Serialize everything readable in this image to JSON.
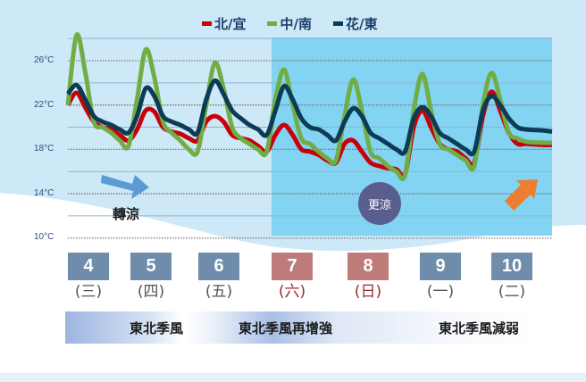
{
  "chart_data": {
    "type": "line",
    "title": "",
    "xlabel": "",
    "ylabel": "",
    "ylim": [
      10,
      28.5
    ],
    "yticks": [
      "26°C",
      "22°C",
      "18°C",
      "14°C",
      "10°C"
    ],
    "ytick_values": [
      26,
      22,
      18,
      14,
      10
    ],
    "grid": true,
    "legend_position": "top",
    "categories": [
      "4",
      "5",
      "6",
      "7",
      "8",
      "9",
      "10"
    ],
    "weekdays": [
      "(三)",
      "(四)",
      "(五)",
      "(六)",
      "(日)",
      "(一)",
      "(二)"
    ],
    "x_hours": [
      0,
      3,
      6,
      9,
      12,
      15,
      18,
      21,
      24,
      27,
      30,
      33,
      36,
      39,
      42,
      45,
      48,
      51,
      54,
      57,
      60,
      63,
      66,
      69,
      72,
      75,
      78,
      81,
      84,
      87,
      90,
      93,
      96,
      99,
      102,
      105,
      108,
      111,
      114,
      117,
      120,
      123,
      126,
      129,
      132,
      135,
      138,
      141,
      144,
      147,
      150,
      153,
      156,
      159,
      165,
      168
    ],
    "series": [
      {
        "name": "北/宜",
        "color": "#c8000a",
        "values": [
          22.0,
          23.1,
          21.8,
          20.5,
          20.0,
          19.8,
          19.3,
          18.8,
          19.8,
          21.5,
          21.4,
          20.0,
          19.6,
          19.4,
          19.0,
          18.8,
          20.5,
          21.0,
          20.5,
          19.3,
          19.0,
          18.8,
          18.3,
          17.8,
          19.3,
          20.2,
          19.3,
          18.0,
          17.8,
          17.5,
          17.0,
          16.8,
          18.5,
          18.8,
          17.8,
          16.8,
          16.5,
          16.3,
          16.2,
          15.8,
          20.0,
          21.5,
          20.0,
          18.5,
          18.0,
          17.8,
          17.2,
          16.8,
          21.0,
          23.2,
          21.5,
          19.5,
          18.5,
          18.5,
          18.4,
          18.4
        ]
      },
      {
        "name": "中/南",
        "color": "#71ad45",
        "values": [
          22.0,
          28.3,
          25.0,
          20.5,
          20.0,
          19.5,
          18.8,
          18.3,
          22.5,
          27.0,
          24.5,
          20.5,
          19.5,
          18.8,
          18.0,
          17.8,
          22.0,
          25.8,
          23.5,
          20.0,
          19.0,
          18.5,
          18.0,
          17.8,
          22.5,
          25.2,
          22.0,
          19.0,
          18.5,
          17.8,
          17.2,
          17.0,
          21.0,
          24.3,
          21.5,
          17.8,
          17.2,
          16.5,
          16.0,
          15.7,
          21.5,
          24.8,
          21.5,
          18.5,
          18.0,
          17.5,
          17.0,
          16.5,
          22.0,
          24.9,
          22.5,
          19.5,
          19.0,
          18.7,
          18.6,
          18.6
        ]
      },
      {
        "name": "花/東",
        "color": "#0c3c55",
        "values": [
          23.0,
          23.8,
          22.5,
          21.0,
          20.5,
          20.2,
          19.8,
          19.5,
          21.0,
          23.5,
          22.8,
          21.0,
          20.5,
          20.2,
          19.8,
          19.5,
          22.5,
          24.2,
          23.0,
          21.5,
          20.8,
          20.2,
          19.8,
          19.3,
          21.5,
          23.7,
          22.5,
          20.8,
          20.0,
          19.8,
          19.3,
          18.8,
          20.5,
          21.7,
          21.0,
          19.5,
          19.0,
          18.5,
          18.0,
          17.8,
          20.8,
          21.8,
          21.0,
          19.5,
          19.0,
          18.5,
          18.0,
          17.8,
          21.5,
          22.8,
          22.0,
          20.8,
          20.0,
          19.8,
          19.7,
          19.6
        ]
      }
    ],
    "annotations": [
      "轉涼",
      "更涼"
    ]
  },
  "legend": [
    {
      "label": "北/宜",
      "color": "#c8000a"
    },
    {
      "label": "中/南",
      "color": "#71ad45"
    },
    {
      "label": "花/東",
      "color": "#0c3c55"
    }
  ],
  "annotations": {
    "cooling_label": "轉涼",
    "colder_badge": "更涼"
  },
  "days": [
    {
      "num": "4",
      "weekday": "(三)",
      "box_color": "#6f8daa",
      "text_color": "#555555"
    },
    {
      "num": "5",
      "weekday": "(四)",
      "box_color": "#6f8daa",
      "text_color": "#555555"
    },
    {
      "num": "6",
      "weekday": "(五)",
      "box_color": "#6f8daa",
      "text_color": "#555555"
    },
    {
      "num": "7",
      "weekday": "(六)",
      "box_color": "#bd7c7a",
      "text_color": "#9c2b2a"
    },
    {
      "num": "8",
      "weekday": "(日)",
      "box_color": "#bd7c7a",
      "text_color": "#9c2b2a"
    },
    {
      "num": "9",
      "weekday": "(一)",
      "box_color": "#6f8daa",
      "text_color": "#555555"
    },
    {
      "num": "10",
      "weekday": "(二)",
      "box_color": "#6f8daa",
      "text_color": "#555555"
    }
  ],
  "monsoon_band": {
    "phase1": "東北季風",
    "phase2": "東北季風再增強",
    "phase3": "東北季風減弱"
  },
  "colors": {
    "background_light": "#cde8f6",
    "highlight_box": "#83d3f2",
    "arrow_blue": "#5b9bd5",
    "arrow_orange": "#ed7d31",
    "badge": "#5a5e8e"
  }
}
